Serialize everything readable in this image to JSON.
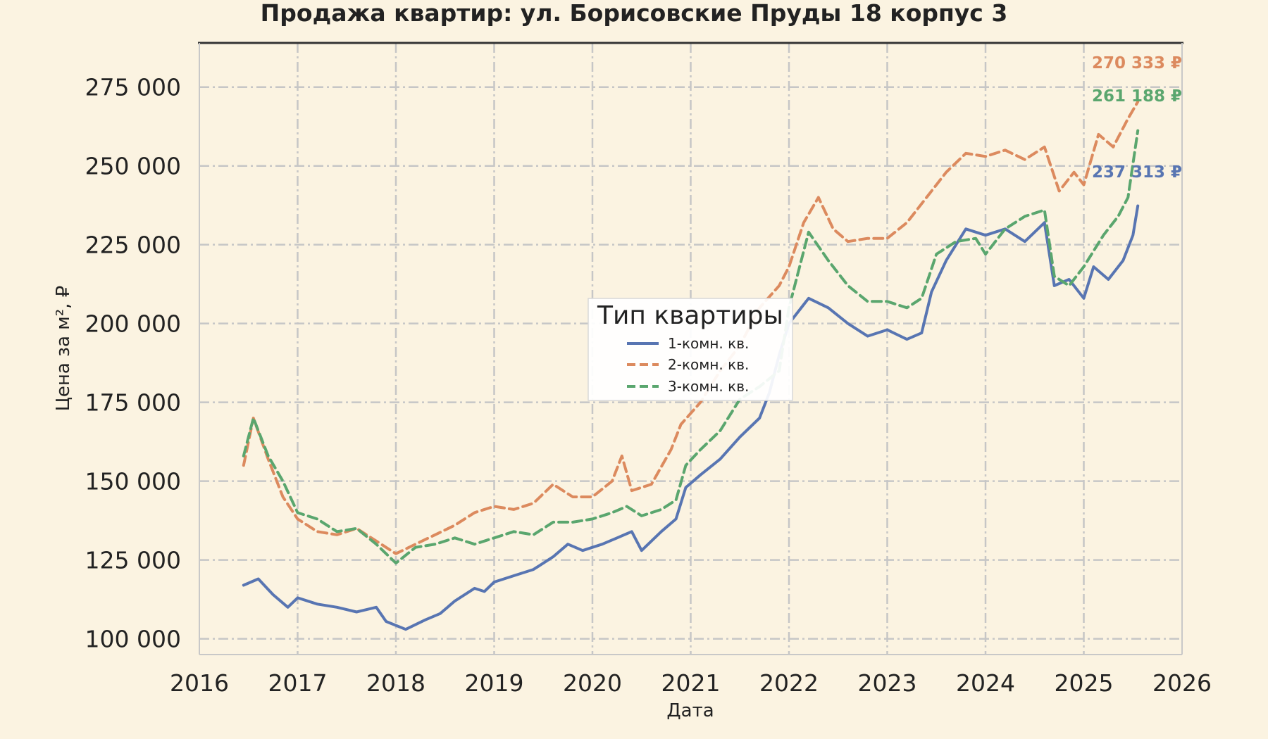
{
  "chart_data": {
    "type": "line",
    "title": "Продажа квартир: ул. Борисовские Пруды 18 корпус 3",
    "xlabel": "Дата",
    "ylabel": "Цена за м², ₽",
    "xlim": [
      2016,
      2026
    ],
    "ylim": [
      95000,
      289000
    ],
    "x_ticks": [
      "2016",
      "2017",
      "2018",
      "2019",
      "2020",
      "2021",
      "2022",
      "2023",
      "2024",
      "2025",
      "2026"
    ],
    "y_ticks": [
      "100 000",
      "125 000",
      "150 000",
      "175 000",
      "200 000",
      "225 000",
      "250 000",
      "275 000"
    ],
    "y_tick_values": [
      100000,
      125000,
      150000,
      175000,
      200000,
      225000,
      250000,
      275000
    ],
    "grid": true,
    "legend": {
      "title": "Тип квартиры",
      "placement": "center",
      "entries": [
        "1-комн. кв.",
        "2-комн. кв.",
        "3-комн. кв."
      ]
    },
    "series": [
      {
        "name": "1-комн. кв.",
        "color": "#5875b2",
        "dash": "solid",
        "end_label": "237 313 ₽",
        "points": [
          [
            2016.45,
            117000
          ],
          [
            2016.6,
            119000
          ],
          [
            2016.75,
            114000
          ],
          [
            2016.9,
            110000
          ],
          [
            2017.0,
            113000
          ],
          [
            2017.2,
            111000
          ],
          [
            2017.4,
            110000
          ],
          [
            2017.6,
            108500
          ],
          [
            2017.8,
            110000
          ],
          [
            2017.9,
            105500
          ],
          [
            2018.1,
            103000
          ],
          [
            2018.3,
            106000
          ],
          [
            2018.45,
            108000
          ],
          [
            2018.6,
            112000
          ],
          [
            2018.8,
            116000
          ],
          [
            2018.9,
            115000
          ],
          [
            2019.0,
            118000
          ],
          [
            2019.2,
            120000
          ],
          [
            2019.4,
            122000
          ],
          [
            2019.6,
            126000
          ],
          [
            2019.75,
            130000
          ],
          [
            2019.9,
            128000
          ],
          [
            2020.1,
            130000
          ],
          [
            2020.25,
            132000
          ],
          [
            2020.4,
            134000
          ],
          [
            2020.5,
            128000
          ],
          [
            2020.7,
            134000
          ],
          [
            2020.85,
            138000
          ],
          [
            2020.95,
            148000
          ],
          [
            2021.1,
            152000
          ],
          [
            2021.3,
            157000
          ],
          [
            2021.5,
            164000
          ],
          [
            2021.7,
            170000
          ],
          [
            2021.8,
            178000
          ],
          [
            2021.9,
            190000
          ],
          [
            2022.0,
            200000
          ],
          [
            2022.2,
            208000
          ],
          [
            2022.4,
            205000
          ],
          [
            2022.6,
            200000
          ],
          [
            2022.8,
            196000
          ],
          [
            2023.0,
            198000
          ],
          [
            2023.2,
            195000
          ],
          [
            2023.35,
            197000
          ],
          [
            2023.45,
            210000
          ],
          [
            2023.6,
            220000
          ],
          [
            2023.8,
            230000
          ],
          [
            2024.0,
            228000
          ],
          [
            2024.2,
            230000
          ],
          [
            2024.4,
            226000
          ],
          [
            2024.6,
            232000
          ],
          [
            2024.7,
            212000
          ],
          [
            2024.85,
            214000
          ],
          [
            2025.0,
            208000
          ],
          [
            2025.1,
            218000
          ],
          [
            2025.25,
            214000
          ],
          [
            2025.4,
            220000
          ],
          [
            2025.5,
            228000
          ],
          [
            2025.55,
            237313
          ]
        ]
      },
      {
        "name": "2-комн. кв.",
        "color": "#dc8a5e",
        "dash": "dashed",
        "end_label": "270 333 ₽",
        "points": [
          [
            2016.45,
            155000
          ],
          [
            2016.55,
            170000
          ],
          [
            2016.7,
            157000
          ],
          [
            2016.85,
            145000
          ],
          [
            2017.0,
            138000
          ],
          [
            2017.2,
            134000
          ],
          [
            2017.4,
            133000
          ],
          [
            2017.6,
            135000
          ],
          [
            2017.8,
            131000
          ],
          [
            2018.0,
            127000
          ],
          [
            2018.2,
            130000
          ],
          [
            2018.4,
            133000
          ],
          [
            2018.6,
            136000
          ],
          [
            2018.8,
            140000
          ],
          [
            2019.0,
            142000
          ],
          [
            2019.2,
            141000
          ],
          [
            2019.4,
            143000
          ],
          [
            2019.6,
            149000
          ],
          [
            2019.8,
            145000
          ],
          [
            2020.0,
            145000
          ],
          [
            2020.2,
            150000
          ],
          [
            2020.3,
            158000
          ],
          [
            2020.4,
            147000
          ],
          [
            2020.6,
            149000
          ],
          [
            2020.8,
            160000
          ],
          [
            2020.9,
            168000
          ],
          [
            2021.1,
            175000
          ],
          [
            2021.3,
            185000
          ],
          [
            2021.5,
            193000
          ],
          [
            2021.7,
            205000
          ],
          [
            2021.9,
            212000
          ],
          [
            2022.0,
            218000
          ],
          [
            2022.15,
            232000
          ],
          [
            2022.3,
            240000
          ],
          [
            2022.45,
            230000
          ],
          [
            2022.6,
            226000
          ],
          [
            2022.8,
            227000
          ],
          [
            2023.0,
            227000
          ],
          [
            2023.2,
            232000
          ],
          [
            2023.4,
            240000
          ],
          [
            2023.6,
            248000
          ],
          [
            2023.8,
            254000
          ],
          [
            2024.0,
            253000
          ],
          [
            2024.2,
            255000
          ],
          [
            2024.4,
            252000
          ],
          [
            2024.6,
            256000
          ],
          [
            2024.75,
            242000
          ],
          [
            2024.9,
            248000
          ],
          [
            2025.0,
            244000
          ],
          [
            2025.15,
            260000
          ],
          [
            2025.3,
            256000
          ],
          [
            2025.45,
            265000
          ],
          [
            2025.55,
            270333
          ]
        ]
      },
      {
        "name": "3-комн. кв.",
        "color": "#5aa66e",
        "dash": "dashed",
        "end_label": "261 188 ₽",
        "points": [
          [
            2016.45,
            158000
          ],
          [
            2016.55,
            170000
          ],
          [
            2016.7,
            158000
          ],
          [
            2016.85,
            150000
          ],
          [
            2017.0,
            140000
          ],
          [
            2017.2,
            138000
          ],
          [
            2017.4,
            134000
          ],
          [
            2017.6,
            135000
          ],
          [
            2017.8,
            130000
          ],
          [
            2018.0,
            124000
          ],
          [
            2018.2,
            129000
          ],
          [
            2018.4,
            130000
          ],
          [
            2018.6,
            132000
          ],
          [
            2018.8,
            130000
          ],
          [
            2019.0,
            132000
          ],
          [
            2019.2,
            134000
          ],
          [
            2019.4,
            133000
          ],
          [
            2019.6,
            137000
          ],
          [
            2019.8,
            137000
          ],
          [
            2020.0,
            138000
          ],
          [
            2020.2,
            140000
          ],
          [
            2020.35,
            142000
          ],
          [
            2020.5,
            139000
          ],
          [
            2020.7,
            141000
          ],
          [
            2020.85,
            144000
          ],
          [
            2020.95,
            155000
          ],
          [
            2021.1,
            160000
          ],
          [
            2021.3,
            166000
          ],
          [
            2021.5,
            176000
          ],
          [
            2021.7,
            180000
          ],
          [
            2021.9,
            185000
          ],
          [
            2022.0,
            205000
          ],
          [
            2022.2,
            229000
          ],
          [
            2022.4,
            220000
          ],
          [
            2022.6,
            212000
          ],
          [
            2022.8,
            207000
          ],
          [
            2023.0,
            207000
          ],
          [
            2023.2,
            205000
          ],
          [
            2023.35,
            208000
          ],
          [
            2023.5,
            222000
          ],
          [
            2023.7,
            226000
          ],
          [
            2023.9,
            227000
          ],
          [
            2024.0,
            222000
          ],
          [
            2024.2,
            230000
          ],
          [
            2024.4,
            234000
          ],
          [
            2024.6,
            236000
          ],
          [
            2024.7,
            215000
          ],
          [
            2024.85,
            212000
          ],
          [
            2025.0,
            218000
          ],
          [
            2025.2,
            228000
          ],
          [
            2025.35,
            234000
          ],
          [
            2025.45,
            240000
          ],
          [
            2025.55,
            261188
          ]
        ]
      }
    ]
  }
}
